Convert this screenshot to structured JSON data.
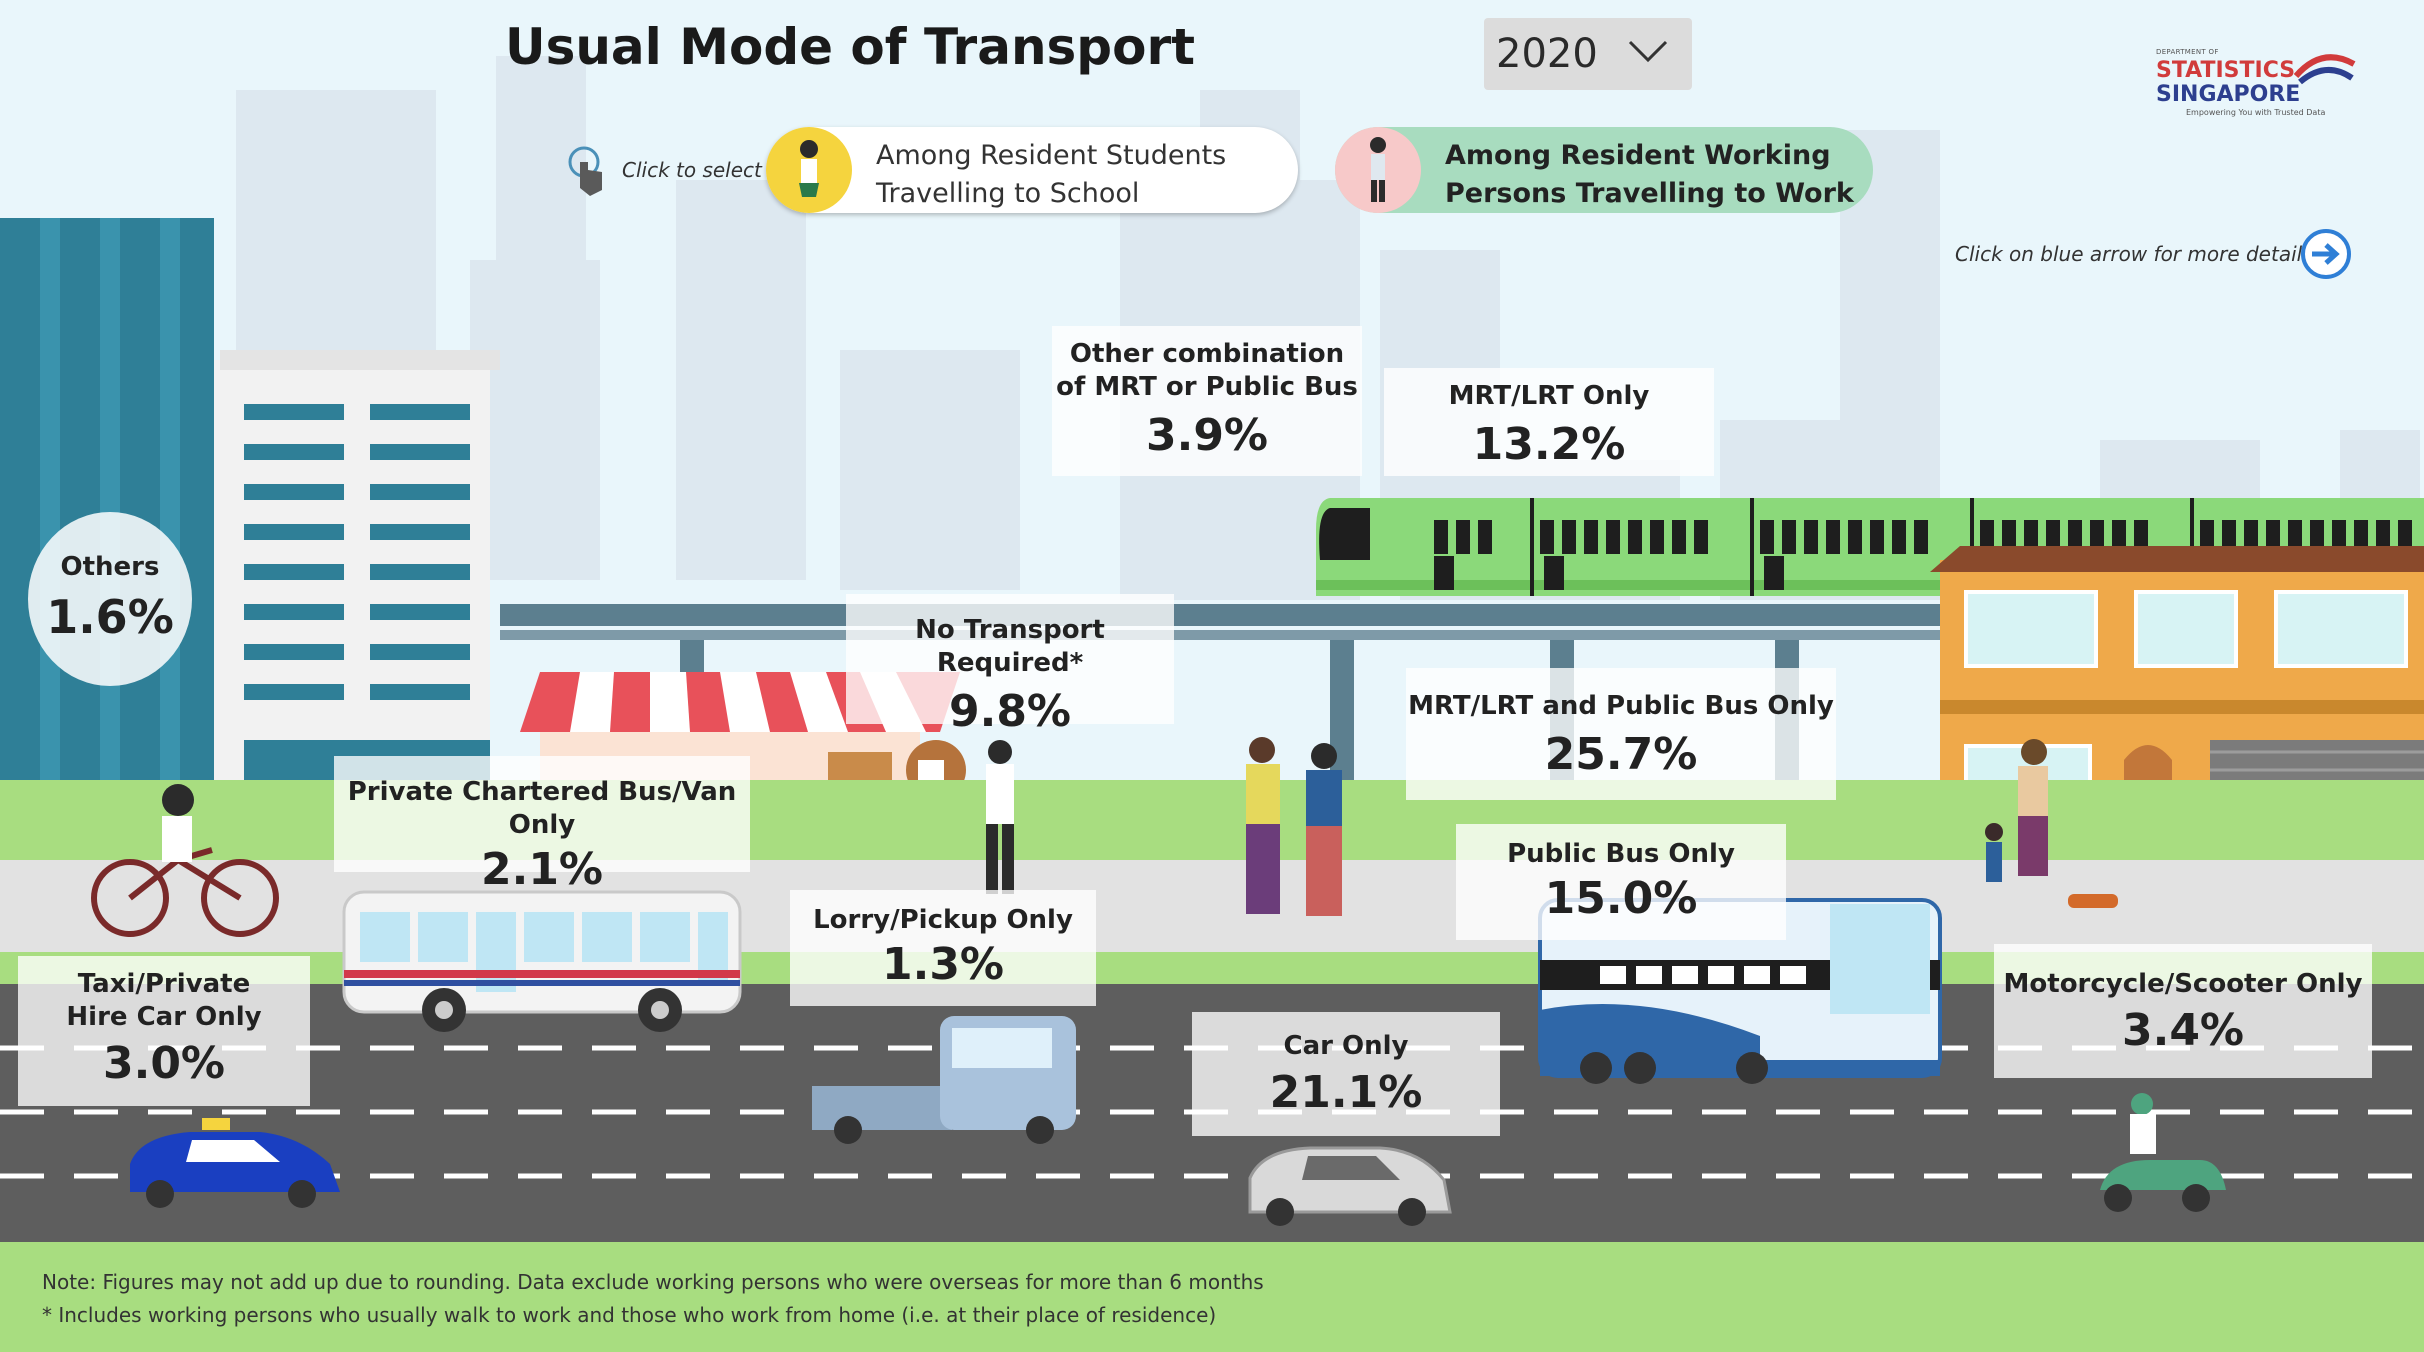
{
  "header": {
    "title": "Usual Mode of Transport",
    "year_selected": "2020"
  },
  "logo": {
    "dept_line": "DEPARTMENT OF",
    "name_line1": "STATISTICS",
    "name_line2": "SINGAPORE",
    "tagline": "Empowering You with Trusted Data"
  },
  "selector": {
    "hint": "Click to select",
    "students_line1": "Among Resident Students",
    "students_line2": "Travelling to School",
    "workers_line1": "Among Resident Working",
    "workers_line2": "Persons Travelling to Work",
    "active": "workers"
  },
  "more_details_hint": "Click on blue arrow for more details",
  "chart_data": {
    "type": "table",
    "categories": [
      "Others",
      "Private Chartered Bus/Van Only",
      "No Transport Required*",
      "Other combination of MRT or Public Bus",
      "MRT/LRT Only",
      "MRT/LRT and Public Bus Only",
      "Public Bus Only",
      "Taxi/Private Hire Car Only",
      "Lorry/Pickup Only",
      "Car Only",
      "Motorcycle/Scooter Only"
    ],
    "values": [
      1.6,
      2.1,
      9.8,
      3.9,
      13.2,
      25.7,
      15.0,
      3.0,
      1.3,
      21.1,
      3.4
    ],
    "unit": "%"
  },
  "cards": {
    "others": {
      "label": "Others",
      "value": "1.6%"
    },
    "private_bus": {
      "label": "Private Chartered Bus/Van Only",
      "value": "2.1%"
    },
    "no_transport": {
      "label": "No Transport Required*",
      "value": "9.8%"
    },
    "other_combo": {
      "label1": "Other combination",
      "label2": "of MRT or Public Bus",
      "value": "3.9%"
    },
    "mrt_only": {
      "label": "MRT/LRT Only",
      "value": "13.2%"
    },
    "mrt_bus": {
      "label": "MRT/LRT and Public Bus Only",
      "value": "25.7%"
    },
    "public_bus": {
      "label": "Public Bus Only",
      "value": "15.0%"
    },
    "taxi": {
      "label1": "Taxi/Private",
      "label2": "Hire Car Only",
      "value": "3.0%"
    },
    "lorry": {
      "label": "Lorry/Pickup Only",
      "value": "1.3%"
    },
    "car": {
      "label": "Car Only",
      "value": "21.1%"
    },
    "motorcycle": {
      "label": "Motorcycle/Scooter Only",
      "value": "3.4%"
    }
  },
  "notes": {
    "line1": "Note: Figures may not add up due to rounding. Data exclude working persons who were overseas for more than 6 months",
    "line2": "* Includes working persons who usually walk to work and those who work from home (i.e. at their place of residence)"
  },
  "colors": {
    "sky": "#e9f6fb",
    "grass": "#a8dd80",
    "road": "#5e5e5e",
    "train": "#8bd97a",
    "accent_blue": "#2f7fd6"
  }
}
